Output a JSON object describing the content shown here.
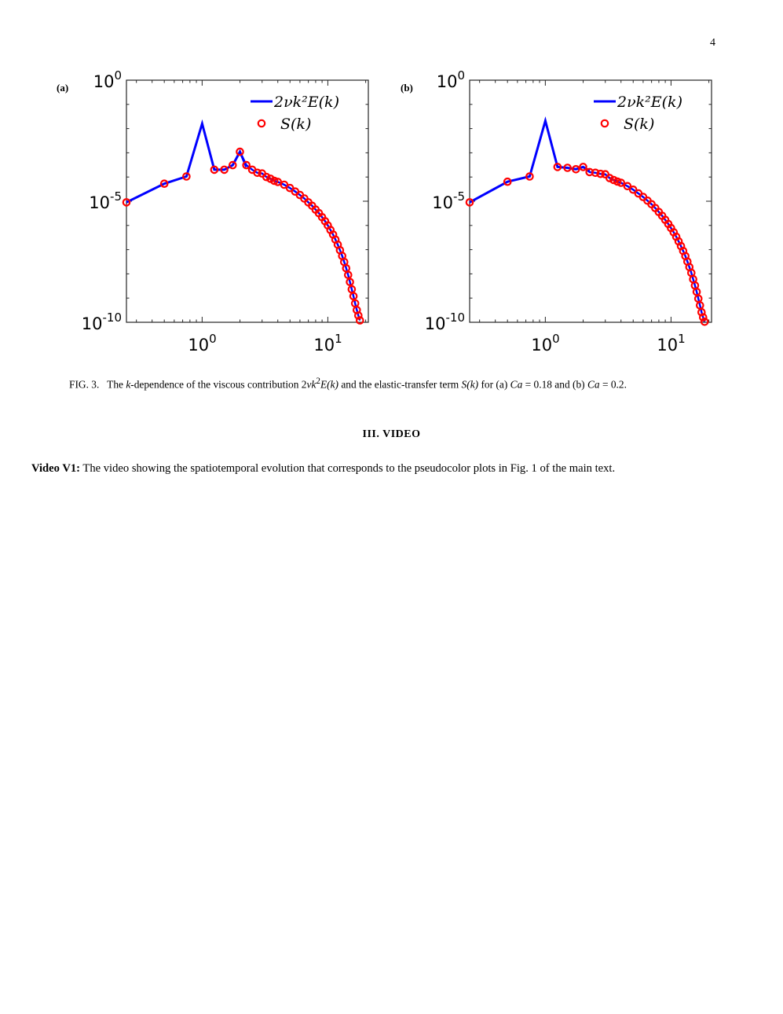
{
  "page_number": "4",
  "figure": {
    "panels": [
      {
        "id": "a",
        "label": "(a)"
      },
      {
        "id": "b",
        "label": "(b)"
      }
    ]
  },
  "chart_data": [
    {
      "type": "line",
      "panel": "(a)",
      "x_scale": "log",
      "y_scale": "log",
      "xlim": [
        0.25,
        21
      ],
      "ylim": [
        1e-10,
        1
      ],
      "xticks": [
        {
          "value": 1,
          "base": "10",
          "exp": "0"
        },
        {
          "value": 10,
          "base": "10",
          "exp": "1"
        }
      ],
      "yticks": [
        {
          "value": 1,
          "base": "10",
          "exp": "0"
        },
        {
          "value": 1e-05,
          "base": "10",
          "exp": "-5"
        },
        {
          "value": 1e-10,
          "base": "10",
          "exp": "-10"
        }
      ],
      "legend": [
        "2νk²E(k)",
        "S(k)"
      ],
      "legend_position": "top-right",
      "series": [
        {
          "name": "2νk²E(k)",
          "style": "line",
          "color": "#0000ff",
          "points": [
            [
              0.25,
              9e-06
            ],
            [
              0.5,
              5.3e-05
            ],
            [
              0.75,
              0.000105
            ],
            [
              1.0,
              0.016
            ],
            [
              1.25,
              0.0002
            ],
            [
              1.5,
              0.0002
            ],
            [
              1.75,
              0.00031
            ],
            [
              2.0,
              0.0011
            ],
            [
              2.25,
              0.00026
            ]
          ]
        },
        {
          "name": "S(k)",
          "style": "circles",
          "color": "#ff0000",
          "points": [
            [
              0.25,
              9e-06
            ],
            [
              0.5,
              5.3e-05
            ],
            [
              0.75,
              0.000105
            ],
            [
              1.25,
              0.0002
            ],
            [
              1.5,
              0.0002
            ],
            [
              1.75,
              0.00031
            ],
            [
              2.0,
              0.0011
            ],
            [
              2.25,
              0.00031
            ],
            [
              2.5,
              0.0002
            ],
            [
              2.75,
              0.00015
            ],
            [
              3.0,
              0.00014
            ],
            [
              3.25,
              0.0001
            ],
            [
              3.5,
              8.5e-05
            ],
            [
              3.75,
              7e-05
            ],
            [
              4.0,
              6.3e-05
            ],
            [
              4.5,
              4.8e-05
            ],
            [
              5.0,
              3.5e-05
            ],
            [
              5.5,
              2.5e-05
            ],
            [
              6.0,
              1.8e-05
            ],
            [
              6.5,
              1.3e-05
            ],
            [
              7.0,
              9e-06
            ],
            [
              7.5,
              6.5e-06
            ],
            [
              8.0,
              4.5e-06
            ],
            [
              8.5,
              3.2e-06
            ],
            [
              9.0,
              2.2e-06
            ],
            [
              9.5,
              1.5e-06
            ],
            [
              10.0,
              1e-06
            ],
            [
              10.5,
              6.5e-07
            ],
            [
              11.0,
              4.2e-07
            ],
            [
              11.5,
              2.6e-07
            ],
            [
              12.0,
              1.6e-07
            ],
            [
              12.5,
              9.5e-08
            ],
            [
              13.0,
              5.5e-08
            ],
            [
              13.5,
              3.1e-08
            ],
            [
              14.0,
              1.7e-08
            ],
            [
              14.5,
              9e-09
            ],
            [
              15.0,
              4.6e-09
            ],
            [
              15.5,
              2.3e-09
            ],
            [
              16.0,
              1.2e-09
            ],
            [
              16.5,
              6e-10
            ],
            [
              17.0,
              3.2e-10
            ],
            [
              17.5,
              1.9e-10
            ],
            [
              18.0,
              1.2e-10
            ]
          ]
        }
      ]
    },
    {
      "type": "line",
      "panel": "(b)",
      "x_scale": "log",
      "y_scale": "log",
      "xlim": [
        0.25,
        21
      ],
      "ylim": [
        1e-10,
        1
      ],
      "xticks": [
        {
          "value": 1,
          "base": "10",
          "exp": "0"
        },
        {
          "value": 10,
          "base": "10",
          "exp": "1"
        }
      ],
      "yticks": [
        {
          "value": 1,
          "base": "10",
          "exp": "0"
        },
        {
          "value": 1e-05,
          "base": "10",
          "exp": "-5"
        },
        {
          "value": 1e-10,
          "base": "10",
          "exp": "-10"
        }
      ],
      "legend": [
        "2νk²E(k)",
        "S(k)"
      ],
      "legend_position": "top-right",
      "series": [
        {
          "name": "2νk²E(k)",
          "style": "line",
          "color": "#0000ff",
          "points": [
            [
              0.25,
              9e-06
            ],
            [
              0.5,
              6.4e-05
            ],
            [
              0.75,
              0.000105
            ],
            [
              1.0,
              0.021
            ],
            [
              1.25,
              0.00026
            ],
            [
              1.5,
              0.00024
            ],
            [
              1.75,
              0.00021
            ],
            [
              2.0,
              0.00026
            ],
            [
              2.25,
              0.00018
            ]
          ]
        },
        {
          "name": "S(k)",
          "style": "circles",
          "color": "#ff0000",
          "points": [
            [
              0.25,
              9e-06
            ],
            [
              0.5,
              6.4e-05
            ],
            [
              0.75,
              0.000105
            ],
            [
              1.25,
              0.00026
            ],
            [
              1.5,
              0.00024
            ],
            [
              1.75,
              0.00021
            ],
            [
              2.0,
              0.00026
            ],
            [
              2.25,
              0.00016
            ],
            [
              2.5,
              0.00015
            ],
            [
              2.75,
              0.000135
            ],
            [
              3.0,
              0.00013
            ],
            [
              3.25,
              9e-05
            ],
            [
              3.5,
              7.5e-05
            ],
            [
              3.75,
              6.5e-05
            ],
            [
              4.0,
              5.8e-05
            ],
            [
              4.5,
              4.2e-05
            ],
            [
              5.0,
              3e-05
            ],
            [
              5.5,
              2.1e-05
            ],
            [
              6.0,
              1.5e-05
            ],
            [
              6.5,
              1.05e-05
            ],
            [
              7.0,
              7.5e-06
            ],
            [
              7.5,
              5.2e-06
            ],
            [
              8.0,
              3.6e-06
            ],
            [
              8.5,
              2.5e-06
            ],
            [
              9.0,
              1.7e-06
            ],
            [
              9.5,
              1.15e-06
            ],
            [
              10.0,
              7.8e-07
            ],
            [
              10.5,
              5.2e-07
            ],
            [
              11.0,
              3.4e-07
            ],
            [
              11.5,
              2.2e-07
            ],
            [
              12.0,
              1.4e-07
            ],
            [
              12.5,
              8.8e-08
            ],
            [
              13.0,
              5.4e-08
            ],
            [
              13.5,
              3.2e-08
            ],
            [
              14.0,
              1.9e-08
            ],
            [
              14.5,
              1.1e-08
            ],
            [
              15.0,
              6e-09
            ],
            [
              15.5,
              3.3e-09
            ],
            [
              16.0,
              1.8e-09
            ],
            [
              16.5,
              9.5e-10
            ],
            [
              17.0,
              5e-10
            ],
            [
              17.5,
              2.6e-10
            ],
            [
              18.0,
              1.6e-10
            ],
            [
              18.5,
              1.05e-10
            ]
          ]
        }
      ]
    }
  ],
  "caption": {
    "label": "FIG. 3.",
    "text_1": "The ",
    "k": "k",
    "text_2": "-dependence of the viscous contribution 2",
    "nu_k": "νk",
    "sup2": "2",
    "E_k": "E(k)",
    "text_3": " and the elastic-transfer term ",
    "S_k": "S(k)",
    "text_4": " for (a) ",
    "Ca": "Ca",
    "text_5": " = 0.18 and (b) ",
    "Ca2": "Ca",
    "text_6": " = 0.2."
  },
  "section": {
    "heading": "III.   VIDEO"
  },
  "video": {
    "label": "Video V1:",
    "text": "The video showing the spatiotemporal evolution that corresponds to the pseudocolor plots in Fig. 1 of the main text."
  }
}
